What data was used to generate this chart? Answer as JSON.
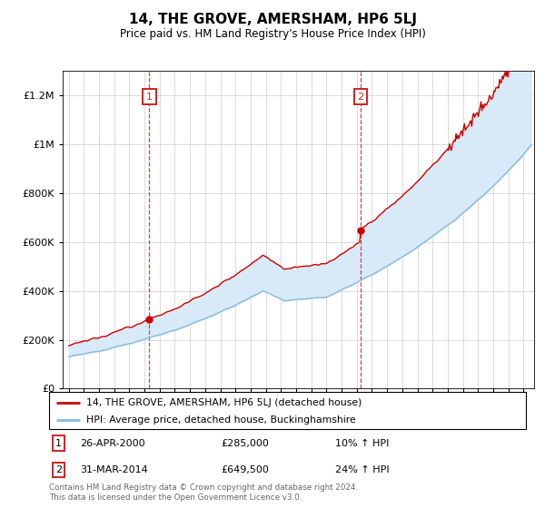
{
  "title": "14, THE GROVE, AMERSHAM, HP6 5LJ",
  "subtitle": "Price paid vs. HM Land Registry's House Price Index (HPI)",
  "ytick_values": [
    0,
    200000,
    400000,
    600000,
    800000,
    1000000,
    1200000
  ],
  "ylim": [
    0,
    1300000
  ],
  "sale1_x": 2000.32,
  "sale1_price": 285000,
  "sale1_date": "26-APR-2000",
  "sale1_pct": "10%",
  "sale2_x": 2014.25,
  "sale2_price": 649500,
  "sale2_date": "31-MAR-2014",
  "sale2_pct": "24%",
  "line1_color": "#cc0000",
  "line2_color": "#88bbdd",
  "shade_color": "#d8eaf8",
  "box_color": "#cc2222",
  "legend_line1": "14, THE GROVE, AMERSHAM, HP6 5LJ (detached house)",
  "legend_line2": "HPI: Average price, detached house, Buckinghamshire",
  "footnote": "Contains HM Land Registry data © Crown copyright and database right 2024.\nThis data is licensed under the Open Government Licence v3.0."
}
